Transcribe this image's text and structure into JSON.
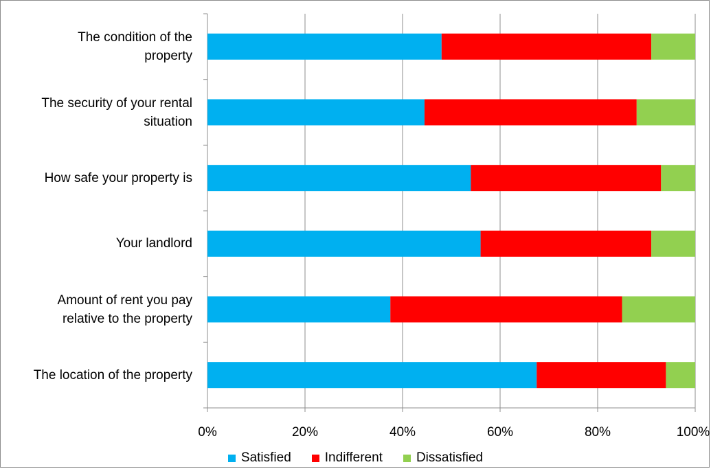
{
  "chart_data": {
    "type": "bar",
    "orientation": "horizontal",
    "stacked": "percent",
    "categories": [
      "The condition of the\nproperty",
      "The security of your rental\nsituation",
      "How safe your property is",
      "Your landlord",
      "Amount of rent you pay\nrelative to the property",
      "The location of the property"
    ],
    "series": [
      {
        "name": "Satisfied",
        "color": "#00b0f0",
        "values": [
          48,
          44.5,
          54,
          56,
          37.5,
          67.5
        ]
      },
      {
        "name": "Indifferent",
        "color": "#ff0000",
        "values": [
          43,
          43.5,
          39,
          35,
          47.5,
          26.5
        ]
      },
      {
        "name": "Dissatisfied",
        "color": "#92d050",
        "values": [
          9,
          12,
          7,
          9,
          15,
          6
        ]
      }
    ],
    "x_ticks": [
      "0%",
      "20%",
      "40%",
      "60%",
      "80%",
      "100%"
    ],
    "xlim": [
      0,
      100
    ],
    "grid": "vertical",
    "legend_position": "bottom",
    "title": "",
    "xlabel": "",
    "ylabel": ""
  }
}
